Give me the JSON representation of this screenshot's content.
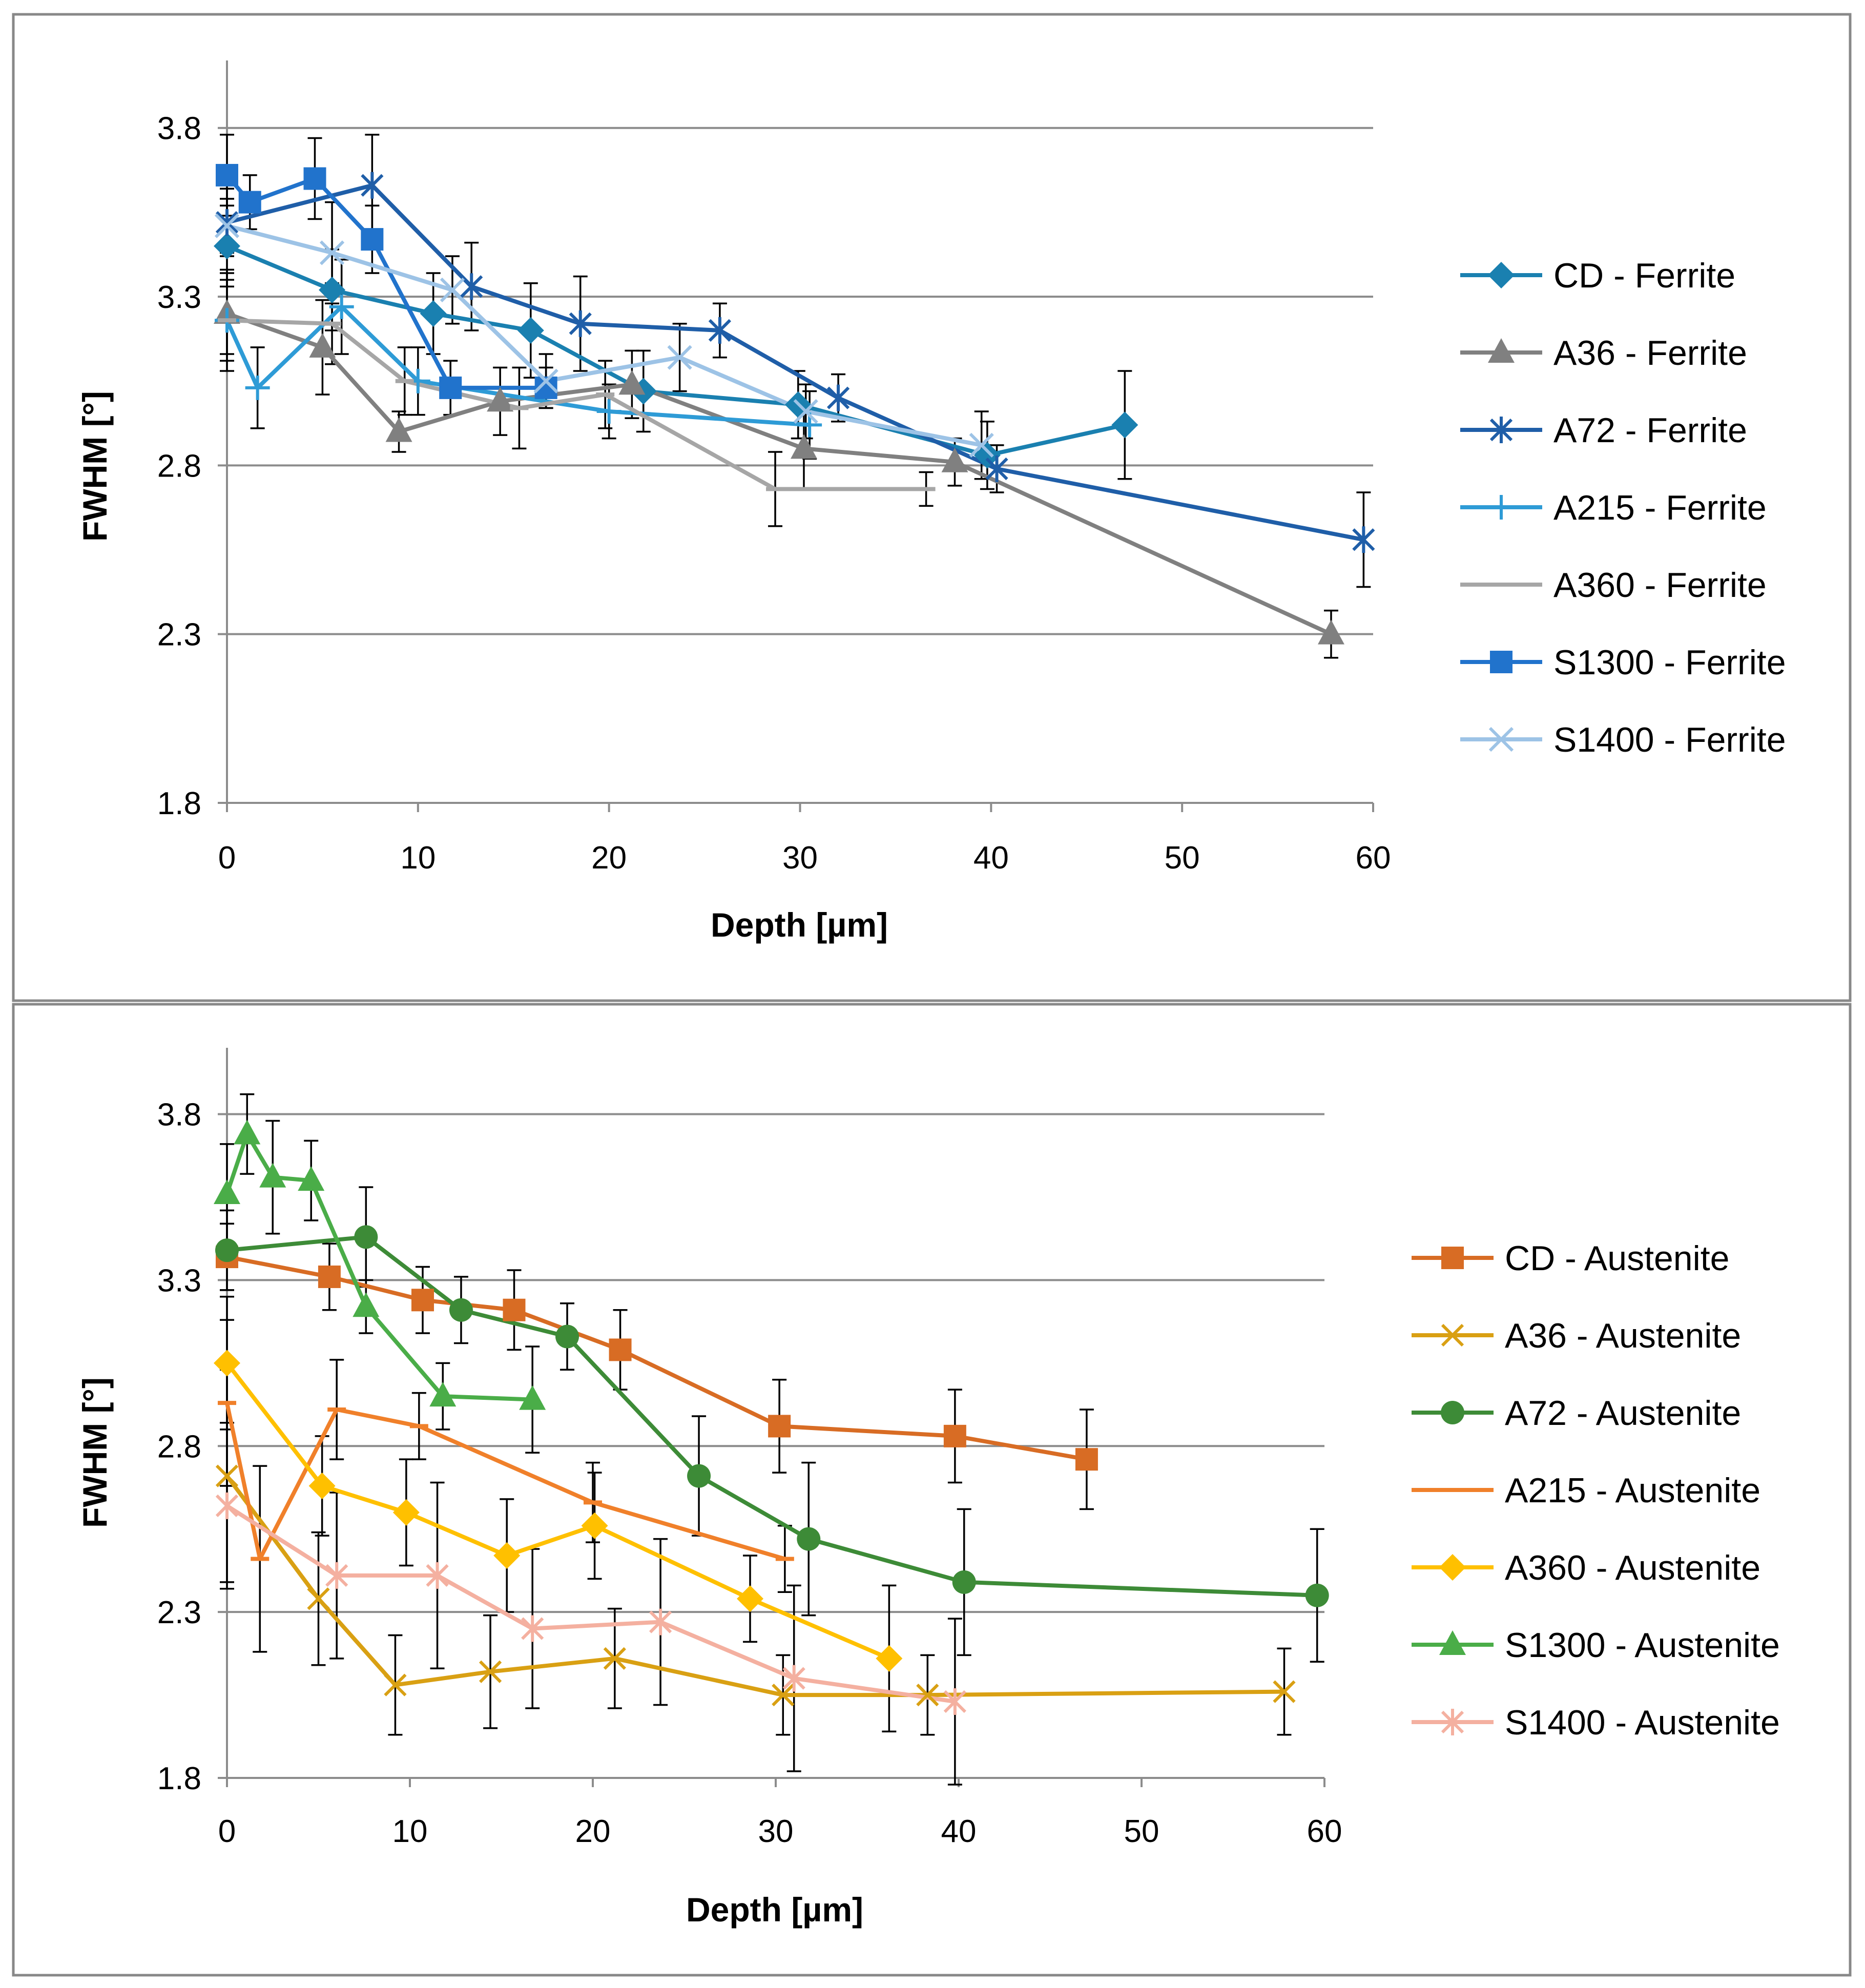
{
  "chart_data": [
    {
      "type": "line",
      "title": "",
      "xlabel": "Depth [µm]",
      "ylabel": "FWHM [°]",
      "xlim": [
        0,
        60
      ],
      "ylim": [
        1.8,
        4.0
      ],
      "xticks": [
        0,
        10,
        20,
        30,
        40,
        50,
        60
      ],
      "yticks": [
        1.8,
        2.3,
        2.8,
        3.3,
        3.8
      ],
      "ytick_labels": [
        "1.8",
        "2.3",
        "2.8",
        "3.3",
        "3.8"
      ],
      "xtick_labels": [
        "0",
        "10",
        "20",
        "30",
        "40",
        "50",
        "60"
      ],
      "grid": "horizontal",
      "legend_position": "right",
      "series": [
        {
          "name": "CD - Ferrite",
          "color": "#1a80b0",
          "marker": "diamond",
          "x": [
            0,
            5.5,
            10.8,
            15.9,
            21.8,
            29.9,
            39.8,
            47.0
          ],
          "y": [
            3.45,
            3.32,
            3.25,
            3.2,
            3.02,
            2.98,
            2.83,
            2.92
          ],
          "err": [
            0.12,
            0.12,
            0.12,
            0.14,
            0.12,
            0.1,
            0.1,
            0.16
          ]
        },
        {
          "name": "A36 - Ferrite",
          "color": "#808080",
          "marker": "triangle",
          "x": [
            0,
            5.0,
            9.0,
            14.3,
            21.2,
            30.2,
            38.1,
            57.8
          ],
          "y": [
            3.25,
            3.15,
            2.9,
            2.99,
            3.04,
            2.85,
            2.81,
            2.3
          ],
          "err": [
            0.12,
            0.14,
            0.06,
            0.1,
            0.1,
            0.12,
            0.07,
            0.07
          ]
        },
        {
          "name": "A72 - Ferrite",
          "color": "#1f5ea8",
          "marker": "star",
          "x": [
            0,
            7.6,
            12.8,
            18.5,
            25.8,
            32.0,
            40.3,
            59.5
          ],
          "y": [
            3.52,
            3.63,
            3.33,
            3.22,
            3.2,
            3.0,
            2.79,
            2.58
          ],
          "err": [
            0.1,
            0.15,
            0.13,
            0.14,
            0.08,
            0.07,
            0.07,
            0.14
          ]
        },
        {
          "name": "A215 - Ferrite",
          "color": "#2e9bd6",
          "marker": "plus",
          "x": [
            0,
            1.6,
            6.0,
            10.0,
            20.0,
            30.5
          ],
          "y": [
            3.23,
            3.03,
            3.27,
            3.05,
            2.96,
            2.92
          ],
          "err": [
            0.15,
            0.12,
            0.14,
            0.1,
            0.08,
            0.1
          ]
        },
        {
          "name": "A360 - Ferrite",
          "color": "#a6a6a6",
          "marker": "dash",
          "x": [
            0,
            5.5,
            9.3,
            15.3,
            19.8,
            28.7,
            36.6
          ],
          "y": [
            3.23,
            3.22,
            3.05,
            2.97,
            3.01,
            2.73,
            2.73
          ],
          "err": [
            0.12,
            0.12,
            0.1,
            0.12,
            0.1,
            0.11,
            0.05
          ]
        },
        {
          "name": "S1300 - Ferrite",
          "color": "#2173cc",
          "marker": "square",
          "x": [
            0,
            1.2,
            4.6,
            7.6,
            11.7,
            16.7
          ],
          "y": [
            3.66,
            3.58,
            3.65,
            3.47,
            3.03,
            3.03
          ],
          "err": [
            0.12,
            0.08,
            0.12,
            0.1,
            0.08,
            0.06
          ]
        },
        {
          "name": "S1400 - Ferrite",
          "color": "#9dc3e6",
          "marker": "cross",
          "x": [
            0,
            5.5,
            11.8,
            16.7,
            23.7,
            30.3,
            39.5
          ],
          "y": [
            3.51,
            3.43,
            3.32,
            3.05,
            3.12,
            2.96,
            2.86
          ],
          "err": [
            0.08,
            0.15,
            0.1,
            0.08,
            0.1,
            0.08,
            0.1
          ]
        }
      ]
    },
    {
      "type": "line",
      "title": "",
      "xlabel": "Depth [µm]",
      "ylabel": "FWHM [°]",
      "xlim": [
        0,
        60
      ],
      "ylim": [
        1.8,
        4.0
      ],
      "xticks": [
        0,
        10,
        20,
        30,
        40,
        50,
        60
      ],
      "yticks": [
        1.8,
        2.3,
        2.8,
        3.3,
        3.8
      ],
      "ytick_labels": [
        "1.8",
        "2.3",
        "2.8",
        "3.3",
        "3.8"
      ],
      "xtick_labels": [
        "0",
        "10",
        "20",
        "30",
        "40",
        "50",
        "60"
      ],
      "grid": "horizontal",
      "legend_position": "right",
      "series": [
        {
          "name": "CD - Austenite",
          "color": "#d86c24",
          "marker": "square",
          "x": [
            0,
            5.6,
            10.7,
            15.7,
            21.5,
            30.2,
            39.8,
            47.0
          ],
          "y": [
            3.37,
            3.31,
            3.24,
            3.21,
            3.09,
            2.86,
            2.83,
            2.76
          ],
          "err": [
            0.1,
            0.1,
            0.1,
            0.12,
            0.12,
            0.14,
            0.14,
            0.15
          ]
        },
        {
          "name": "A36 - Austenite",
          "color": "#d9a013",
          "marker": "x",
          "x": [
            0,
            5.0,
            9.2,
            14.4,
            21.2,
            30.4,
            38.3,
            57.8
          ],
          "y": [
            2.71,
            2.34,
            2.08,
            2.12,
            2.16,
            2.05,
            2.05,
            2.06
          ],
          "err": [
            0.32,
            0.2,
            0.15,
            0.17,
            0.15,
            0.12,
            0.12,
            0.13
          ]
        },
        {
          "name": "A72 - Austenite",
          "color": "#3d8b37",
          "marker": "circle",
          "x": [
            0,
            7.6,
            12.8,
            18.6,
            25.8,
            31.8,
            40.3,
            59.6
          ],
          "y": [
            3.39,
            3.43,
            3.21,
            3.13,
            2.71,
            2.52,
            2.39,
            2.35
          ],
          "err": [
            0.12,
            0.15,
            0.1,
            0.1,
            0.18,
            0.23,
            0.22,
            0.2
          ]
        },
        {
          "name": "A215 - Austenite",
          "color": "#f0802a",
          "marker": "dash",
          "x": [
            0,
            1.8,
            6.0,
            10.5,
            20.0,
            30.5
          ],
          "y": [
            2.93,
            2.46,
            2.91,
            2.86,
            2.63,
            2.46
          ],
          "err": [
            0.25,
            0.28,
            0.15,
            0.1,
            0.12,
            0.1
          ]
        },
        {
          "name": "A360 - Austenite",
          "color": "#ffc000",
          "marker": "diamond",
          "x": [
            0,
            5.2,
            9.8,
            15.3,
            20.1,
            28.6,
            36.2
          ],
          "y": [
            3.05,
            2.68,
            2.6,
            2.47,
            2.56,
            2.34,
            2.16
          ],
          "err": [
            0.2,
            0.15,
            0.16,
            0.17,
            0.16,
            0.13,
            0.22
          ]
        },
        {
          "name": "S1300 - Austenite",
          "color": "#4aad48",
          "marker": "triangle",
          "x": [
            0,
            1.1,
            2.5,
            4.6,
            7.6,
            11.8,
            16.7
          ],
          "y": [
            3.56,
            3.74,
            3.61,
            3.6,
            3.22,
            2.95,
            2.94
          ],
          "err": [
            0.15,
            0.12,
            0.17,
            0.12,
            0.08,
            0.1,
            0.16
          ]
        },
        {
          "name": "S1400 - Austenite",
          "color": "#f4b0a0",
          "marker": "star",
          "x": [
            0,
            6.0,
            11.5,
            16.7,
            23.7,
            31.0,
            39.8
          ],
          "y": [
            2.62,
            2.41,
            2.41,
            2.25,
            2.27,
            2.1,
            2.03
          ],
          "err": [
            0.25,
            0.25,
            0.28,
            0.24,
            0.25,
            0.28,
            0.25
          ]
        }
      ]
    }
  ]
}
